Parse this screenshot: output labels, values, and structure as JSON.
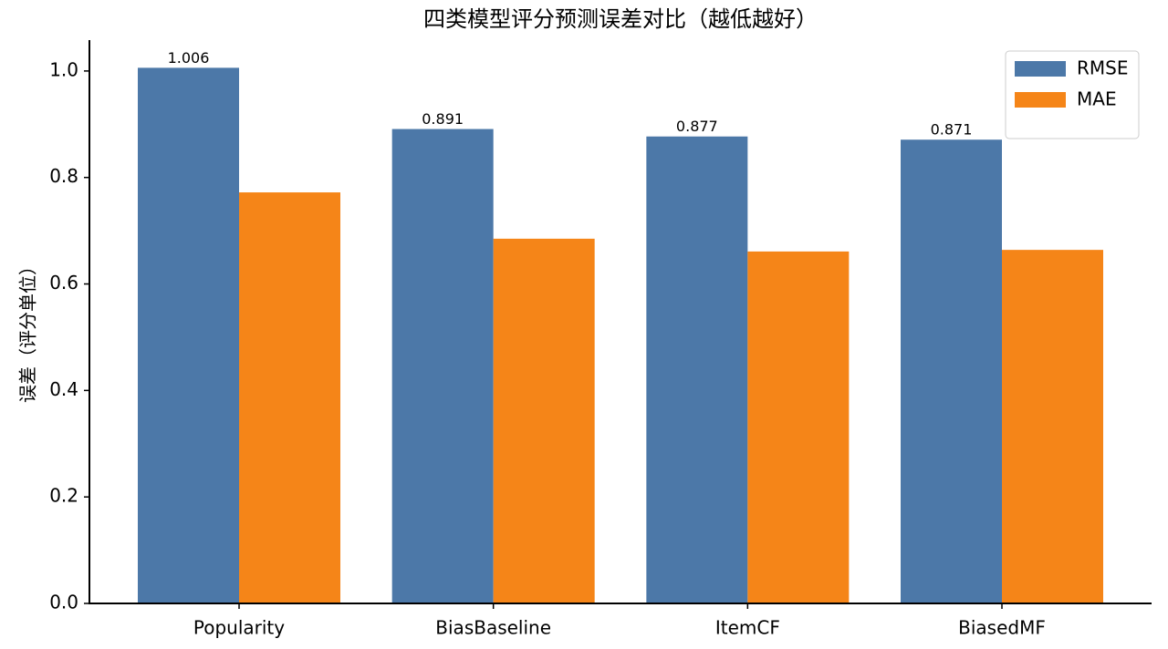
{
  "chart_data": {
    "type": "bar",
    "title": "四类模型评分预测误差对比（越低越好）",
    "y_label": "误差（评分单位）",
    "categories": [
      "Popularity",
      "BiasBaseline",
      "ItemCF",
      "BiasedMF"
    ],
    "series": [
      {
        "name": "RMSE",
        "color": "#4c78a8",
        "values": [
          1.006,
          0.891,
          0.877,
          0.871
        ],
        "show_labels": true
      },
      {
        "name": "MAE",
        "color": "#f58518",
        "values": [
          0.772,
          0.685,
          0.661,
          0.664
        ],
        "show_labels": false
      }
    ],
    "ylim": [
      0,
      1.058
    ],
    "yticks": [
      {
        "value": 0,
        "label": "0.0"
      },
      0.2,
      0.4,
      0.6,
      0.8,
      {
        "value": 1,
        "label": "1.0"
      }
    ],
    "grid": false,
    "legend": "upper right"
  }
}
